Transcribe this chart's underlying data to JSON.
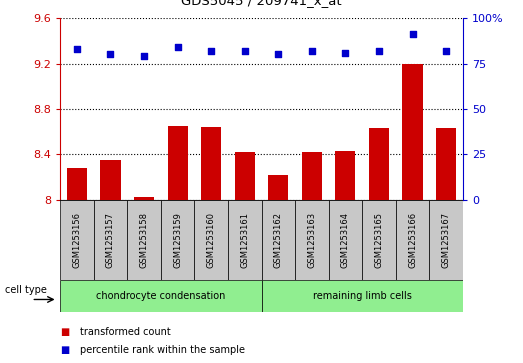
{
  "title": "GDS5045 / 209741_x_at",
  "samples": [
    "GSM1253156",
    "GSM1253157",
    "GSM1253158",
    "GSM1253159",
    "GSM1253160",
    "GSM1253161",
    "GSM1253162",
    "GSM1253163",
    "GSM1253164",
    "GSM1253165",
    "GSM1253166",
    "GSM1253167"
  ],
  "transformed_count": [
    8.28,
    8.35,
    8.02,
    8.65,
    8.64,
    8.42,
    8.22,
    8.42,
    8.43,
    8.63,
    9.2,
    8.63
  ],
  "percentile_rank": [
    83,
    80,
    79,
    84,
    82,
    82,
    80,
    82,
    81,
    82,
    91,
    82
  ],
  "ylim_left": [
    8.0,
    9.6
  ],
  "ylim_right": [
    0,
    100
  ],
  "yticks_left": [
    8.0,
    8.4,
    8.8,
    9.2,
    9.6
  ],
  "yticks_right": [
    0,
    25,
    50,
    75,
    100
  ],
  "ytick_labels_left": [
    "8",
    "8.4",
    "8.8",
    "9.2",
    "9.6"
  ],
  "ytick_labels_right": [
    "0",
    "25",
    "50",
    "75",
    "100%"
  ],
  "cell_type_groups": [
    {
      "label": "chondrocyte condensation",
      "start": 0,
      "end": 6,
      "color": "#90EE90"
    },
    {
      "label": "remaining limb cells",
      "start": 6,
      "end": 12,
      "color": "#90EE90"
    }
  ],
  "cell_type_label": "cell type",
  "bar_color": "#CC0000",
  "dot_color": "#0000CC",
  "sample_bg_color": "#C8C8C8",
  "left_axis_color": "#CC0000",
  "right_axis_color": "#0000CC",
  "legend_items": [
    {
      "label": "transformed count",
      "color": "#CC0000"
    },
    {
      "label": "percentile rank within the sample",
      "color": "#0000CC"
    }
  ],
  "fig_width": 5.23,
  "fig_height": 3.63,
  "dpi": 100
}
